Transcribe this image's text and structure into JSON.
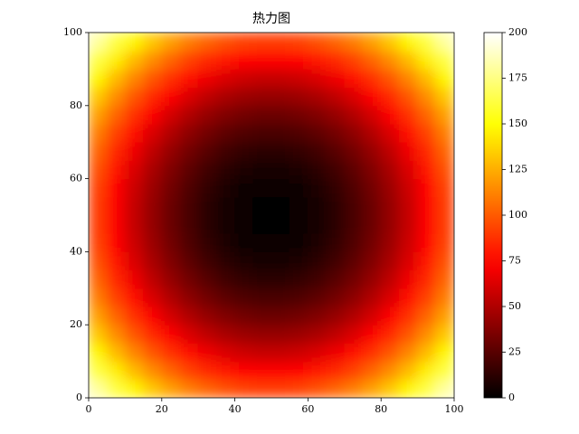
{
  "chart_data": {
    "type": "heatmap",
    "title": "热力图",
    "colormap": "hot",
    "x": [
      2.5,
      7.5,
      12.5,
      17.5,
      22.5,
      27.5,
      32.5,
      37.5,
      42.5,
      47.5,
      52.5,
      57.5,
      62.5,
      67.5,
      72.5,
      77.5,
      82.5,
      87.5,
      92.5,
      97.5
    ],
    "y": [
      2.5,
      7.5,
      12.5,
      17.5,
      22.5,
      27.5,
      32.5,
      37.5,
      42.5,
      47.5,
      52.5,
      57.5,
      62.5,
      67.5,
      72.5,
      77.5,
      82.5,
      87.5,
      92.5,
      97.5
    ],
    "values": [
      [
        180.5,
        162.5,
        146.5,
        132.5,
        120.5,
        110.5,
        102.5,
        96.5,
        92.5,
        90.5,
        90.5,
        92.5,
        96.5,
        102.5,
        110.5,
        120.5,
        132.5,
        146.5,
        162.5,
        180.5
      ],
      [
        162.5,
        144.5,
        128.5,
        114.5,
        102.5,
        92.5,
        84.5,
        78.5,
        74.5,
        72.5,
        72.5,
        74.5,
        78.5,
        84.5,
        92.5,
        102.5,
        114.5,
        128.5,
        144.5,
        162.5
      ],
      [
        146.5,
        128.5,
        112.5,
        98.5,
        86.5,
        76.5,
        68.5,
        62.5,
        58.5,
        56.5,
        56.5,
        58.5,
        62.5,
        68.5,
        76.5,
        86.5,
        98.5,
        112.5,
        128.5,
        146.5
      ],
      [
        132.5,
        114.5,
        98.5,
        84.5,
        72.5,
        62.5,
        54.5,
        48.5,
        44.5,
        42.5,
        42.5,
        44.5,
        48.5,
        54.5,
        62.5,
        72.5,
        84.5,
        98.5,
        114.5,
        132.5
      ],
      [
        120.5,
        102.5,
        86.5,
        72.5,
        60.5,
        50.5,
        42.5,
        36.5,
        32.5,
        30.5,
        30.5,
        32.5,
        36.5,
        42.5,
        50.5,
        60.5,
        72.5,
        86.5,
        102.5,
        120.5
      ],
      [
        110.5,
        92.5,
        76.5,
        62.5,
        50.5,
        40.5,
        32.5,
        26.5,
        22.5,
        20.5,
        20.5,
        22.5,
        26.5,
        32.5,
        40.5,
        50.5,
        62.5,
        76.5,
        92.5,
        110.5
      ],
      [
        102.5,
        84.5,
        68.5,
        54.5,
        42.5,
        32.5,
        24.5,
        18.5,
        14.5,
        12.5,
        12.5,
        14.5,
        18.5,
        24.5,
        32.5,
        42.5,
        54.5,
        68.5,
        84.5,
        102.5
      ],
      [
        96.5,
        78.5,
        62.5,
        48.5,
        36.5,
        26.5,
        18.5,
        12.5,
        8.5,
        6.5,
        6.5,
        8.5,
        12.5,
        18.5,
        26.5,
        36.5,
        48.5,
        62.5,
        78.5,
        96.5
      ],
      [
        92.5,
        74.5,
        58.5,
        44.5,
        32.5,
        22.5,
        14.5,
        8.5,
        4.5,
        2.5,
        2.5,
        4.5,
        8.5,
        14.5,
        22.5,
        32.5,
        44.5,
        58.5,
        74.5,
        92.5
      ],
      [
        90.5,
        72.5,
        56.5,
        42.5,
        30.5,
        20.5,
        12.5,
        6.5,
        2.5,
        0.5,
        0.5,
        2.5,
        6.5,
        12.5,
        20.5,
        30.5,
        42.5,
        56.5,
        72.5,
        90.5
      ],
      [
        90.5,
        72.5,
        56.5,
        42.5,
        30.5,
        20.5,
        12.5,
        6.5,
        2.5,
        0.5,
        0.5,
        2.5,
        6.5,
        12.5,
        20.5,
        30.5,
        42.5,
        56.5,
        72.5,
        90.5
      ],
      [
        92.5,
        74.5,
        58.5,
        44.5,
        32.5,
        22.5,
        14.5,
        8.5,
        4.5,
        2.5,
        2.5,
        4.5,
        8.5,
        14.5,
        22.5,
        32.5,
        44.5,
        58.5,
        74.5,
        92.5
      ],
      [
        96.5,
        78.5,
        62.5,
        48.5,
        36.5,
        26.5,
        18.5,
        12.5,
        8.5,
        6.5,
        6.5,
        8.5,
        12.5,
        18.5,
        26.5,
        36.5,
        48.5,
        62.5,
        78.5,
        96.5
      ],
      [
        102.5,
        84.5,
        68.5,
        54.5,
        42.5,
        32.5,
        24.5,
        18.5,
        14.5,
        12.5,
        12.5,
        14.5,
        18.5,
        24.5,
        32.5,
        42.5,
        54.5,
        68.5,
        84.5,
        102.5
      ],
      [
        110.5,
        92.5,
        76.5,
        62.5,
        50.5,
        40.5,
        32.5,
        26.5,
        22.5,
        20.5,
        20.5,
        22.5,
        26.5,
        32.5,
        40.5,
        50.5,
        62.5,
        76.5,
        92.5,
        110.5
      ],
      [
        120.5,
        102.5,
        86.5,
        72.5,
        60.5,
        50.5,
        42.5,
        36.5,
        32.5,
        30.5,
        30.5,
        32.5,
        36.5,
        42.5,
        50.5,
        60.5,
        72.5,
        86.5,
        102.5,
        120.5
      ],
      [
        132.5,
        114.5,
        98.5,
        84.5,
        72.5,
        62.5,
        54.5,
        48.5,
        44.5,
        42.5,
        42.5,
        44.5,
        48.5,
        54.5,
        62.5,
        72.5,
        84.5,
        98.5,
        114.5,
        132.5
      ],
      [
        146.5,
        128.5,
        112.5,
        98.5,
        86.5,
        76.5,
        68.5,
        62.5,
        58.5,
        56.5,
        56.5,
        58.5,
        62.5,
        68.5,
        76.5,
        86.5,
        98.5,
        112.5,
        128.5,
        146.5
      ],
      [
        162.5,
        144.5,
        128.5,
        114.5,
        102.5,
        92.5,
        84.5,
        78.5,
        74.5,
        72.5,
        72.5,
        74.5,
        78.5,
        84.5,
        92.5,
        102.5,
        114.5,
        128.5,
        144.5,
        162.5
      ],
      [
        180.5,
        162.5,
        146.5,
        132.5,
        120.5,
        110.5,
        102.5,
        96.5,
        92.5,
        90.5,
        90.5,
        92.5,
        96.5,
        102.5,
        110.5,
        120.5,
        132.5,
        146.5,
        162.5,
        180.5
      ]
    ],
    "xlim": [
      0,
      100
    ],
    "ylim": [
      0,
      100
    ],
    "xticks": [
      0,
      20,
      40,
      60,
      80,
      100
    ],
    "yticks": [
      0,
      20,
      40,
      60,
      80,
      100
    ],
    "colorbar": {
      "lim": [
        0,
        200
      ],
      "ticks": [
        0,
        25,
        50,
        75,
        100,
        125,
        150,
        175,
        200
      ]
    }
  }
}
